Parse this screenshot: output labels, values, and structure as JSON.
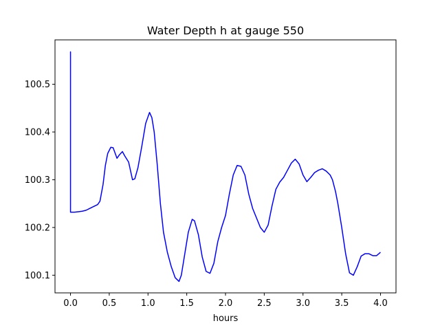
{
  "chart_data": {
    "type": "line",
    "title": "Water Depth h at gauge 550",
    "xlabel": "hours",
    "ylabel": "",
    "xlim": [
      -0.2,
      4.2
    ],
    "ylim": [
      100.063,
      100.593
    ],
    "xticks": [
      0.0,
      0.5,
      1.0,
      1.5,
      2.0,
      2.5,
      3.0,
      3.5,
      4.0
    ],
    "xtick_labels": [
      "0.0",
      "0.5",
      "1.0",
      "1.5",
      "2.0",
      "2.5",
      "3.0",
      "3.5",
      "4.0"
    ],
    "yticks": [
      100.1,
      100.2,
      100.3,
      100.4,
      100.5
    ],
    "ytick_labels": [
      "100.1",
      "100.2",
      "100.3",
      "100.4",
      "100.5"
    ],
    "grid": false,
    "series": [
      {
        "color": "#0000ff",
        "x": [
          0.0,
          0.0,
          0.0,
          0.05,
          0.1,
          0.15,
          0.2,
          0.25,
          0.3,
          0.35,
          0.38,
          0.42,
          0.45,
          0.48,
          0.52,
          0.55,
          0.6,
          0.63,
          0.67,
          0.7,
          0.75,
          0.8,
          0.83,
          0.87,
          0.92,
          0.97,
          1.02,
          1.05,
          1.08,
          1.12,
          1.16,
          1.2,
          1.25,
          1.3,
          1.35,
          1.4,
          1.43,
          1.47,
          1.52,
          1.57,
          1.6,
          1.65,
          1.7,
          1.75,
          1.8,
          1.85,
          1.9,
          1.95,
          2.0,
          2.05,
          2.1,
          2.15,
          2.2,
          2.25,
          2.3,
          2.35,
          2.4,
          2.45,
          2.5,
          2.55,
          2.6,
          2.65,
          2.7,
          2.75,
          2.8,
          2.85,
          2.9,
          2.95,
          3.0,
          3.05,
          3.1,
          3.15,
          3.2,
          3.25,
          3.3,
          3.35,
          3.38,
          3.42,
          3.45,
          3.5,
          3.55,
          3.6,
          3.65,
          3.7,
          3.75,
          3.8,
          3.85,
          3.9,
          3.95,
          4.0
        ],
        "y": [
          100.232,
          100.568,
          100.232,
          100.232,
          100.233,
          100.234,
          100.236,
          100.24,
          100.244,
          100.248,
          100.255,
          100.29,
          100.33,
          100.355,
          100.368,
          100.367,
          100.345,
          100.352,
          100.359,
          100.35,
          100.337,
          100.3,
          100.302,
          100.325,
          100.37,
          100.418,
          100.441,
          100.43,
          100.4,
          100.33,
          100.25,
          100.19,
          100.148,
          100.118,
          100.095,
          100.087,
          100.1,
          100.14,
          100.19,
          100.217,
          100.214,
          100.185,
          100.138,
          100.108,
          100.104,
          100.125,
          100.17,
          100.2,
          100.225,
          100.27,
          100.31,
          100.33,
          100.328,
          100.31,
          100.27,
          100.24,
          100.22,
          100.2,
          100.19,
          100.205,
          100.245,
          100.28,
          100.295,
          100.305,
          100.32,
          100.335,
          100.343,
          100.333,
          100.31,
          100.296,
          100.305,
          100.315,
          100.32,
          100.323,
          100.318,
          100.31,
          100.3,
          100.275,
          100.25,
          100.2,
          100.145,
          100.105,
          100.1,
          100.118,
          100.14,
          100.145,
          100.145,
          100.141,
          100.141,
          100.148
        ]
      }
    ]
  }
}
